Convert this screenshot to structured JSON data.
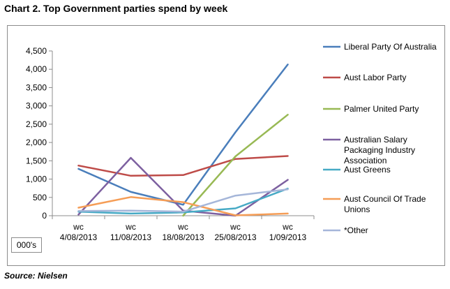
{
  "title": "Chart 2. Top Government parties spend by week",
  "source": "Source: Nielsen",
  "unit_label": "000's",
  "chart_data": {
    "type": "line",
    "title": "Chart 2. Top Government parties spend by week",
    "categories": [
      [
        "wc",
        "4/08/2013"
      ],
      [
        "wc",
        "11/08/2013"
      ],
      [
        "wc",
        "18/08/2013"
      ],
      [
        "wc",
        "25/08/2013"
      ],
      [
        "wc",
        "1/09/2013"
      ]
    ],
    "ylim": [
      0,
      4500
    ],
    "yticks": [
      "0",
      "500",
      "1,000",
      "1,500",
      "2,000",
      "2,500",
      "3,000",
      "3,500",
      "4,000",
      "4,500"
    ],
    "ytick_values": [
      0,
      500,
      1000,
      1500,
      2000,
      2500,
      3000,
      3500,
      4000,
      4500
    ],
    "grid": false,
    "legend_position": "right",
    "series": [
      {
        "name": "Liberal Party Of Australia",
        "label_lines": [
          "Liberal Party Of Australia"
        ],
        "color": "#4a7ebb",
        "values": [
          1280,
          650,
          300,
          2280,
          4130
        ]
      },
      {
        "name": "Aust Labor Party",
        "label_lines": [
          "Aust Labor Party"
        ],
        "color": "#be4b48",
        "values": [
          1370,
          1090,
          1110,
          1550,
          1630
        ]
      },
      {
        "name": "Palmer United Party",
        "label_lines": [
          "Palmer United Party"
        ],
        "color": "#98b954",
        "values": [
          null,
          null,
          0,
          1620,
          2760
        ]
      },
      {
        "name": "Australian Salary Packaging Industry Association",
        "label_lines": [
          "Australian Salary",
          "Packaging Industry",
          "Association"
        ],
        "color": "#7d60a0",
        "values": [
          30,
          1580,
          140,
          0,
          980
        ]
      },
      {
        "name": "Aust Greens",
        "label_lines": [
          "Aust Greens"
        ],
        "color": "#46aac5",
        "values": [
          110,
          60,
          90,
          200,
          740
        ]
      },
      {
        "name": "Aust Council Of Trade Unions",
        "label_lines": [
          "Aust Council Of Trade",
          "Unions"
        ],
        "color": "#f59d56",
        "values": [
          220,
          510,
          370,
          10,
          60
        ]
      },
      {
        "name": "*Other",
        "label_lines": [
          "*Other"
        ],
        "color": "#a5b6d9",
        "values": [
          130,
          140,
          110,
          550,
          720
        ]
      }
    ]
  }
}
